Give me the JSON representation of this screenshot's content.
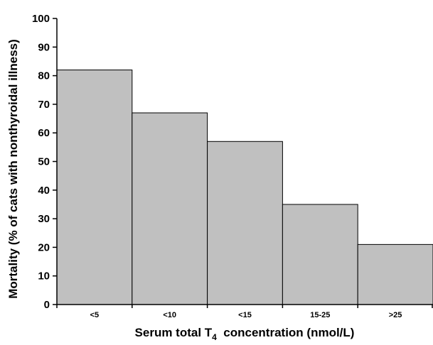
{
  "chart_data": {
    "type": "bar",
    "categories": [
      "<5",
      "<10",
      "<15",
      "15-25",
      ">25"
    ],
    "values": [
      82,
      67,
      57,
      35,
      21
    ],
    "ylim": [
      0,
      100
    ],
    "yticks": [
      0,
      10,
      20,
      30,
      40,
      50,
      60,
      70,
      80,
      90,
      100
    ],
    "ylabel": "Mortality (% of cats with nonthyroidal illness)",
    "xlabel": {
      "prefix": "Serum total T",
      "subscript": "4",
      "suffix": "  concentration (nmol/L)"
    },
    "bar_color": "#c0c0c0",
    "bar_edge_color": "#000000",
    "grid": false,
    "legend": "none"
  }
}
